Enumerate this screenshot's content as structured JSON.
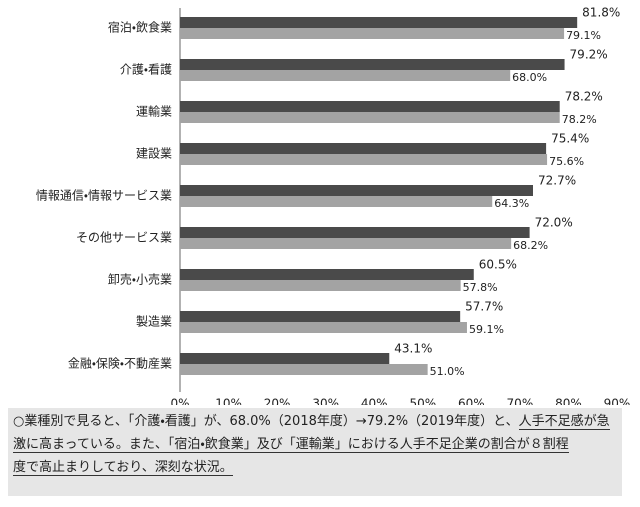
{
  "chart_data": {
    "type": "hbar",
    "categories": [
      "宿泊・飲食業",
      "介護・看護",
      "運輸業",
      "建設業",
      "情報通信・情報サービス業",
      "その他サービス業",
      "卸売・小売業",
      "製造業",
      "金融・保険・不動産業"
    ],
    "series": [
      {
        "color": "#4a4a4a",
        "values": [
          81.8,
          79.2,
          78.2,
          75.4,
          72.7,
          72.0,
          60.5,
          57.7,
          43.1
        ],
        "value_labels": [
          "81.8%",
          "79.2%",
          "78.2%",
          "75.4%",
          "72.7%",
          "72.0%",
          "60.5%",
          "57.7%",
          "43.1%"
        ]
      },
      {
        "color": "#a3a3a3",
        "values": [
          79.1,
          68.0,
          78.2,
          75.6,
          64.3,
          68.2,
          57.8,
          59.1,
          51.0
        ],
        "value_labels": [
          "79.1%",
          "68.0%",
          "78.2%",
          "75.6%",
          "64.3%",
          "68.2%",
          "57.8%",
          "59.1%",
          "51.0%"
        ]
      }
    ],
    "xlim": [
      0,
      90
    ],
    "xticks": [
      {
        "value": 0,
        "label": "0%"
      },
      {
        "value": 10,
        "label": "10%"
      },
      {
        "value": 20,
        "label": "20%"
      },
      {
        "value": 30,
        "label": "30%"
      },
      {
        "value": 40,
        "label": "40%"
      },
      {
        "value": 50,
        "label": "50%"
      },
      {
        "value": 60,
        "label": "60%"
      },
      {
        "value": 70,
        "label": "70%"
      },
      {
        "value": 80,
        "label": "80%"
      },
      {
        "value": 90,
        "label": "90%"
      }
    ],
    "note": [
      "○業種別で見ると、「介護・看護」が、68.0%（2018年度）→79.2%（2019年度）と、",
      "人手不足感が急",
      "激に高まっている。また、「宿泊・飲食業」及び「運輸業」における人手不足企業の割合が８割程",
      "度で高止まりしており、深刻な状況。"
    ]
  }
}
